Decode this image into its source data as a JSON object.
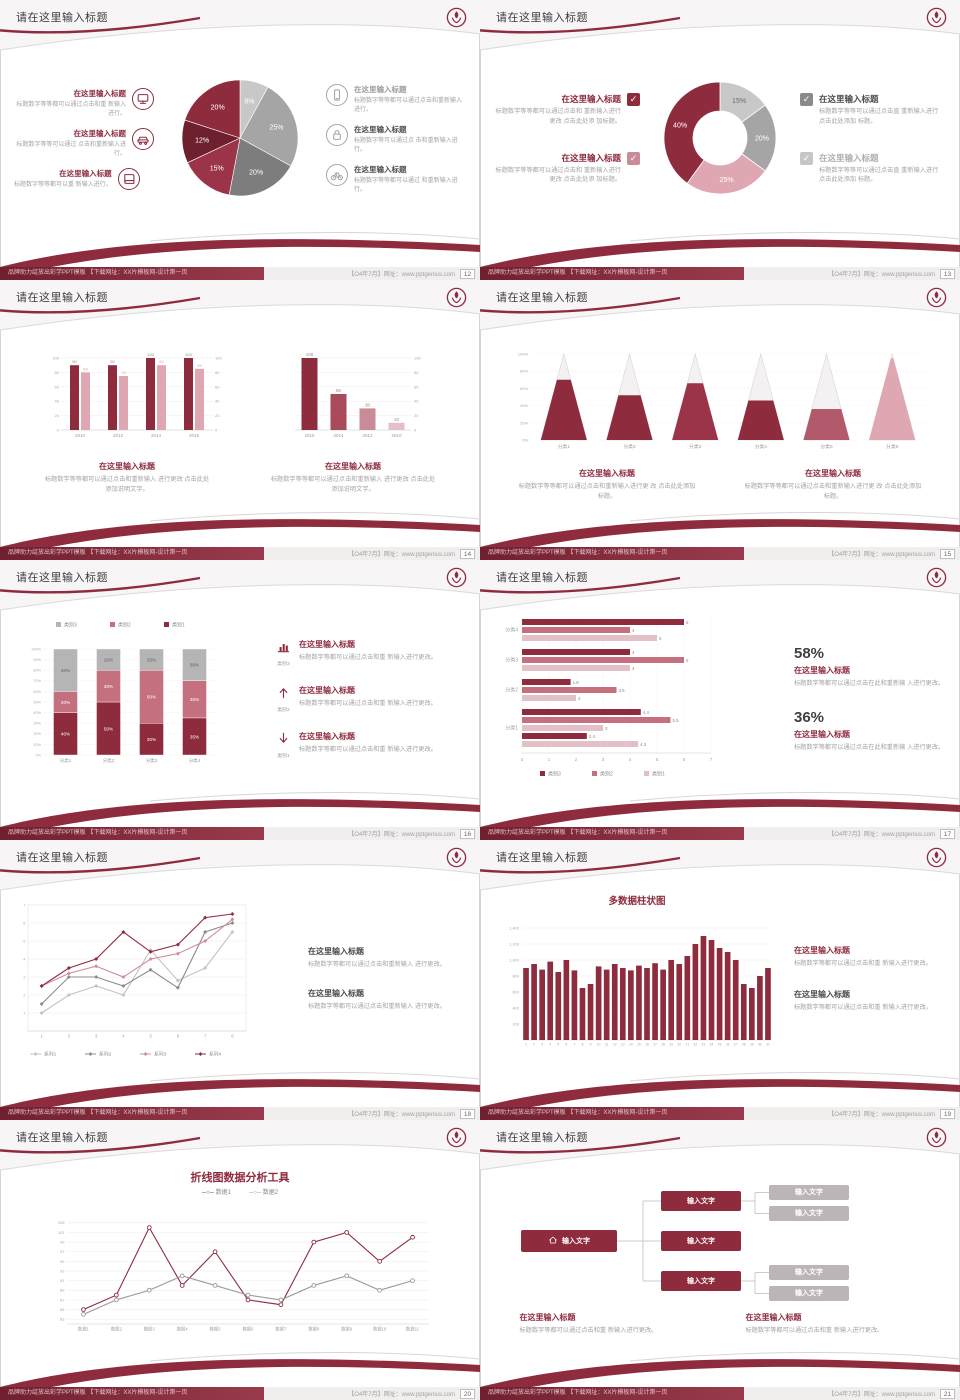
{
  "page": {
    "background": "#d8d5d6"
  },
  "theme": {
    "maroon": "#8e2c3e",
    "maroon_deep": "#6f202f",
    "maroon_mid": "#9b3448",
    "pink": "#c4707f",
    "pink_light": "#dfa7b2",
    "pink_pale": "#e3bfc7",
    "gray_dark": "#7d7d7d",
    "gray": "#a5a5a5",
    "gray_light": "#c8c8c8",
    "text_dark": "#3f3f3f",
    "text_body": "#a6a3a4"
  },
  "common": {
    "slide_title": "请在这里输入标题",
    "footer_left": "品牌助力绽放出彩学PPT模板 【下载网址：XX片模板网-设计第一页",
    "footer_right": "【O4年7月】网址：www.pptgenius.com"
  },
  "slides": [
    {
      "page_no": "12",
      "layout": "pie-callouts",
      "chart_data": {
        "type": "pie",
        "slices": [
          {
            "label": "8%",
            "value": 8,
            "color": "#c8c8c8"
          },
          {
            "label": "25%",
            "value": 25,
            "color": "#a5a5a5"
          },
          {
            "label": "20%",
            "value": 20,
            "color": "#7d7d7d"
          },
          {
            "label": "15%",
            "value": 15,
            "color": "#9b3448"
          },
          {
            "label": "12%",
            "value": 12,
            "color": "#6f202f"
          },
          {
            "label": "20%",
            "value": 20,
            "color": "#8e2c3e"
          }
        ]
      },
      "left_items": [
        {
          "icon": "monitor",
          "icon_color": "#8e2c3e",
          "title_color": "#8e2c3e",
          "title": "在这里输入标题",
          "body": "标题数字等等都可以通过点击和重 新输入进行。"
        },
        {
          "icon": "car",
          "icon_color": "#8e2c3e",
          "title_color": "#8e2c3e",
          "title": "在这里输入标题",
          "body": "标题数字等等可以通过 点击和重新输入进行。"
        },
        {
          "icon": "book",
          "icon_color": "#8e2c3e",
          "title_color": "#8e2c3e",
          "title": "在这里输入标题",
          "body": "标题数字等等都可以重 新输入进行。"
        }
      ],
      "right_items": [
        {
          "icon": "phone",
          "icon_color": "#a5a5a5",
          "title_color": "#9c9c9c",
          "title": "在这里输入标题",
          "body": "标题数字等等都可以通过点击和重新输入进行。"
        },
        {
          "icon": "lock",
          "icon_color": "#a5a5a5",
          "title_color": "#4d4d4d",
          "title": "在这里输入标题",
          "body": "标题数字等可以通过点 击和重新输入进行。"
        },
        {
          "icon": "bike",
          "icon_color": "#a5a5a5",
          "title_color": "#4d4d4d",
          "title": "在这里输入标题",
          "body": "标题数字等等都可以通过 和重新输入进行。"
        }
      ]
    },
    {
      "page_no": "13",
      "layout": "donut-callouts",
      "chart_data": {
        "type": "donut",
        "slices": [
          {
            "label": "15%",
            "value": 15,
            "color": "#c8c8c8",
            "label_color": "#6a6a6a"
          },
          {
            "label": "20%",
            "value": 20,
            "color": "#a5a5a5",
            "label_color": "#ffffff"
          },
          {
            "label": "25%",
            "value": 25,
            "color": "#dfa7b2",
            "label_color": "#ffffff"
          },
          {
            "label": "40%",
            "value": 40,
            "color": "#8e2c3e",
            "label_color": "#ffffff"
          }
        ]
      },
      "left_items": [
        {
          "icon": "check",
          "icon_color": "#8e2c3e",
          "title_color": "#8e2c3e",
          "title": "在这里输入标题",
          "body": "标题数字等等都可以通过点击和 重新输入进行更改 点击此处添 加标题。"
        },
        {
          "icon": "check",
          "icon_color": "#c98b98",
          "title_color": "#8e2c3e",
          "title": "在这里输入标题",
          "body": "标题数字等等都可以通过点击和 重新输入进行更改 点击此处添 加标题。"
        }
      ],
      "right_items": [
        {
          "icon": "check",
          "icon_color": "#8a8a8a",
          "title_color": "#4d4d4d",
          "title": "在这里输入标题",
          "body": "标题数字等等可以通过点击直 重新输入进行 点击此处添加 标题。"
        },
        {
          "icon": "check",
          "icon_color": "#c6c6c6",
          "title_color": "#b0b0b0",
          "title": "在这里输入标题",
          "body": "标题数字等等可以通过点击直 重新输入进行 点击此处添加 标题。"
        }
      ]
    },
    {
      "page_no": "14",
      "layout": "dual-bars",
      "chart_data": [
        {
          "type": "bar",
          "categories": [
            "2010",
            "2012",
            "2014",
            "2016"
          ],
          "series": [
            {
              "name": "系列1",
              "color": "#8e2c3e",
              "values": [
                90,
                90,
                100,
                100
              ]
            },
            {
              "name": "系列2",
              "color": "#dfa7b2",
              "values": [
                80,
                75,
                90,
                85
              ]
            }
          ],
          "ylim": [
            0,
            100
          ],
          "yticks": [
            0,
            20,
            40,
            60,
            80,
            100
          ]
        },
        {
          "type": "bar",
          "categories": [
            "2016",
            "2014",
            "2012",
            "2010"
          ],
          "values": [
            100,
            50,
            30,
            10
          ],
          "colors": [
            "#8e2c3e",
            "#a84a5c",
            "#c98b98",
            "#e3bfc7"
          ],
          "ylim": [
            0,
            100
          ],
          "yticks": [
            0,
            20,
            40,
            60,
            80,
            100
          ]
        }
      ],
      "text_blocks": [
        {
          "title": "在这里输入标题",
          "accent": true,
          "body": "标题数字等等都可以通过点击和重新输入 进行更改 点击此处添加说明文字。"
        },
        {
          "title": "在这里输入标题",
          "accent": true,
          "body": "标题数字等等都可以通过点击和重新输入 进行更改 点击此处添加说明文字。"
        }
      ]
    },
    {
      "page_no": "15",
      "layout": "pyramids",
      "chart_data": {
        "type": "pyramid",
        "categories": [
          "分类1",
          "分类2",
          "分类3",
          "分类4",
          "分类5",
          "分类6"
        ],
        "fill_percent": [
          70,
          52,
          66,
          46,
          36,
          95
        ],
        "fill_colors": [
          "#8e2c3e",
          "#8e2c3e",
          "#9b3448",
          "#8e2c3e",
          "#b25a6b",
          "#dfa7b2"
        ],
        "yticks": [
          "0%",
          "20%",
          "40%",
          "60%",
          "80%",
          "100%"
        ]
      },
      "text_blocks": [
        {
          "title": "在这里输入标题",
          "accent": true,
          "body": "标题数字等等都可以通过点击和重新输入进行更 改 点击此处添加标题。"
        },
        {
          "title": "在这里输入标题",
          "accent": true,
          "body": "标题数字等等都可以通过点击和重新输入进行更 改 点击此处添加标题。"
        }
      ]
    },
    {
      "page_no": "16",
      "layout": "stacked",
      "chart_data": {
        "type": "bar",
        "stacked_percent": true,
        "categories": [
          "分类1",
          "分类2",
          "分类3",
          "分类4"
        ],
        "series": [
          {
            "name": "类别1",
            "color": "#8e2c3e",
            "values": [
              40,
              50,
              30,
              35
            ]
          },
          {
            "name": "类别2",
            "color": "#c4707f",
            "values": [
              20,
              30,
              50,
              35
            ]
          },
          {
            "name": "类别3",
            "color": "#b5b5b5",
            "values": [
              40,
              20,
              20,
              30
            ]
          }
        ],
        "legend_order": [
          "类别3",
          "类别2",
          "类别1"
        ],
        "yticks": [
          "0%",
          "10%",
          "20%",
          "30%",
          "40%",
          "50%",
          "60%",
          "70%",
          "80%",
          "90%",
          "100%"
        ]
      },
      "side_items": [
        {
          "icon": "chart",
          "icon_label": "类别3",
          "title": "在这里输入标题",
          "body": "标题数字等都可以通过点击和重 新输入进行更改。"
        },
        {
          "icon": "arrow-up",
          "icon_label": "类别2",
          "title": "在这里输入标题",
          "body": "标题数字等都可以通过点击和重 新输入进行更改。"
        },
        {
          "icon": "arrow-down",
          "icon_label": "类别1",
          "title": "在这里输入标题",
          "body": "标题数字等都可以通过点击和重 新输入进行更改。"
        }
      ]
    },
    {
      "page_no": "17",
      "layout": "hbars",
      "chart_data": {
        "type": "bar",
        "horizontal": true,
        "legend": [
          {
            "name": "类别3",
            "color": "#8e2c3e"
          },
          {
            "name": "类别2",
            "color": "#c4707f"
          },
          {
            "name": "类别1",
            "color": "#e3bfc7"
          }
        ],
        "groups": [
          {
            "category": "分类4",
            "bars": [
              {
                "series": "类别3",
                "value": 6
              },
              {
                "series": "类别2",
                "value": 4
              },
              {
                "series": "类别1",
                "value": 5
              }
            ]
          },
          {
            "category": "分类3",
            "bars": [
              {
                "series": "类别3",
                "value": 4
              },
              {
                "series": "类别2",
                "value": 6
              },
              {
                "series": "类别1",
                "value": 4
              }
            ]
          },
          {
            "category": "分类2",
            "bars": [
              {
                "series": "类别3",
                "value": 1.8
              },
              {
                "series": "类别2",
                "value": 3.5
              },
              {
                "series": "类别1",
                "value": 2
              }
            ]
          },
          {
            "category": "分类1",
            "bars": [
              {
                "series": "类别3",
                "value": 4.4
              },
              {
                "series": "类别2",
                "value": 5.5
              },
              {
                "series": "类别1",
                "value": 3
              },
              {
                "series": "类别3",
                "value": 2.4
              },
              {
                "series": "类别1",
                "value": 4.3
              }
            ]
          }
        ],
        "xticks": [
          0,
          1,
          2,
          3,
          4,
          5,
          6,
          7
        ]
      },
      "stats": [
        {
          "value": "58%",
          "title": "在这里输入标题",
          "body": "标题数字等都可以通过点击在此和重新输 入进行更改。"
        },
        {
          "value": "36%",
          "title": "在这里输入标题",
          "body": "标题数字等都可以通过点击在此和重新输 入进行更改。"
        }
      ]
    },
    {
      "page_no": "18",
      "layout": "multiline",
      "chart_data": {
        "type": "line",
        "x": [
          1,
          2,
          3,
          4,
          5,
          6,
          7,
          8
        ],
        "ylim": [
          0,
          7
        ],
        "yticks": [
          1,
          2,
          3,
          4,
          5,
          6,
          7
        ],
        "series": [
          {
            "name": "系列1",
            "color": "#c3c3c3",
            "values": [
              1,
              2,
              2.5,
              2,
              4.5,
              2.8,
              3.5,
              5.5
            ]
          },
          {
            "name": "系列2",
            "color": "#8c8c8c",
            "values": [
              1.5,
              3,
              3,
              2.5,
              3.4,
              2.4,
              5.5,
              6
            ]
          },
          {
            "name": "系列3",
            "color": "#cf8d9b",
            "values": [
              2.5,
              3.2,
              3.6,
              3,
              4,
              4.3,
              5,
              6.2
            ]
          },
          {
            "name": "系列4",
            "color": "#8e2c3e",
            "values": [
              2.5,
              3.5,
              4,
              5.5,
              4.4,
              4.8,
              6.3,
              6.5
            ]
          }
        ]
      },
      "text_blocks": [
        {
          "title": "在这里输入标题",
          "accent": false,
          "body": "标题数字等都可以通过点击和重新输入 进行更改。"
        },
        {
          "title": "在这里输入标题",
          "accent": false,
          "body": "标题数字等都可以通过点击和重新输入 进行更改。"
        }
      ]
    },
    {
      "page_no": "19",
      "layout": "columns31",
      "chart_data": {
        "type": "bar",
        "title": "多数据柱状图",
        "color": "#8e2c3e",
        "x_labels": [
          "1",
          "2",
          "3",
          "4",
          "5",
          "6",
          "7",
          "8",
          "9",
          "10",
          "11",
          "12",
          "13",
          "14",
          "15",
          "16",
          "17",
          "18",
          "19",
          "20",
          "21",
          "22",
          "23",
          "24",
          "25",
          "26",
          "27",
          "28",
          "29",
          "30",
          "31"
        ],
        "values": [
          900,
          950,
          880,
          980,
          850,
          1000,
          870,
          650,
          700,
          920,
          880,
          950,
          900,
          870,
          930,
          900,
          960,
          880,
          1000,
          950,
          1050,
          1200,
          1300,
          1250,
          1150,
          1100,
          1000,
          700,
          650,
          800,
          900
        ],
        "ylim": [
          0,
          1400
        ],
        "yticks": [
          "200",
          "400",
          "600",
          "800",
          "1,000",
          "1,200",
          "1,400"
        ]
      },
      "text_blocks": [
        {
          "title": "在这里输入标题",
          "accent": true,
          "body": "标题数字等都可以通过点击和重 新输入进行更改。"
        },
        {
          "title": "在这里输入标题",
          "accent": false,
          "body": "标题数字等都可以通过点击和重 新输入进行更改。"
        }
      ]
    },
    {
      "page_no": "20",
      "layout": "line-tool",
      "chart_data": {
        "type": "line",
        "title": "折线图数据分析工具",
        "categories": [
          "数据1",
          "数据2",
          "数据3",
          "数据4",
          "数据5",
          "数据6",
          "数据7",
          "数据8",
          "数据9",
          "数据10",
          "数据11"
        ],
        "ylim": [
          82,
          104
        ],
        "yticks": [
          83,
          85,
          87,
          89,
          91,
          93,
          95,
          97,
          99,
          101,
          103
        ],
        "series": [
          {
            "name": "数据1",
            "color": "#8e2c3e",
            "values": [
              85,
              88,
              102,
              90,
              97,
              87,
              86,
              99,
              101,
              95,
              100
            ]
          },
          {
            "name": "数据2",
            "color": "#9a9a9a",
            "values": [
              84,
              87,
              89,
              92,
              90,
              88,
              87,
              90,
              92,
              89,
              91
            ]
          }
        ]
      }
    },
    {
      "page_no": "21",
      "layout": "org",
      "org": {
        "root": {
          "label": "输入文字",
          "icon": "home"
        },
        "children": [
          {
            "label": "输入文字",
            "leaves": [
              "输入文字",
              "输入文字"
            ]
          },
          {
            "label": "输入文字",
            "leaves": []
          },
          {
            "label": "输入文字",
            "leaves": [
              "输入文字",
              "输入文字"
            ]
          }
        ]
      },
      "text_blocks": [
        {
          "title": "在这里输入标题",
          "accent": true,
          "body": "标题数字等都可以通过点击和重 新输入进行更改。"
        },
        {
          "title": "在这里输入标题",
          "accent": true,
          "body": "标题数字等都可以通过点击和重 新输入进行更改。"
        }
      ]
    }
  ]
}
